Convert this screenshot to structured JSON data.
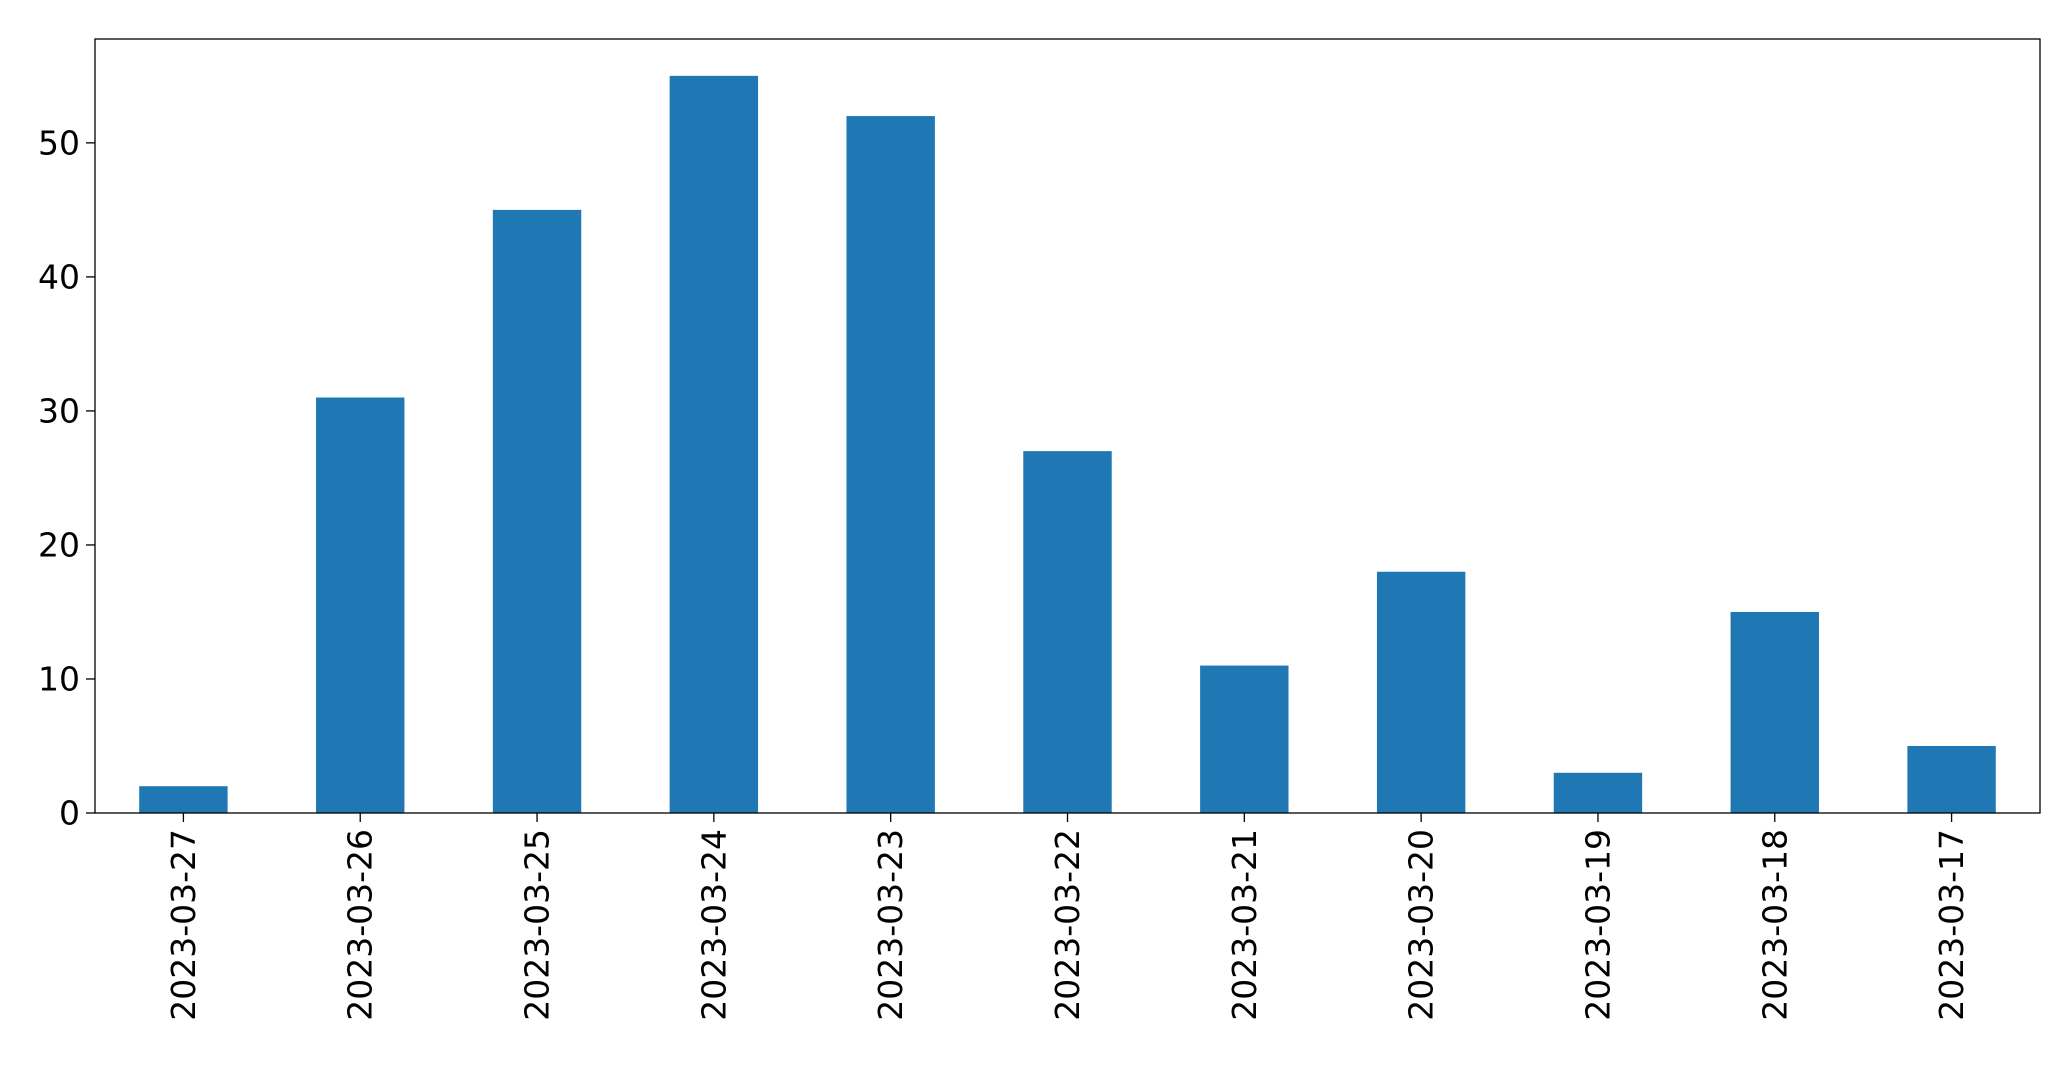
{
  "chart_data": {
    "type": "bar",
    "title": "",
    "xlabel": "",
    "ylabel": "",
    "categories": [
      "2023-03-27",
      "2023-03-26",
      "2023-03-25",
      "2023-03-24",
      "2023-03-23",
      "2023-03-22",
      "2023-03-21",
      "2023-03-20",
      "2023-03-19",
      "2023-03-18",
      "2023-03-17"
    ],
    "values": [
      2,
      31,
      45,
      55,
      52,
      27,
      11,
      18,
      3,
      15,
      5
    ],
    "ylim": [
      0,
      57.75
    ],
    "yticks": [
      0,
      10,
      20,
      30,
      40,
      50
    ],
    "bar_color": "#1f77b4",
    "grid": false,
    "legend": "none"
  }
}
